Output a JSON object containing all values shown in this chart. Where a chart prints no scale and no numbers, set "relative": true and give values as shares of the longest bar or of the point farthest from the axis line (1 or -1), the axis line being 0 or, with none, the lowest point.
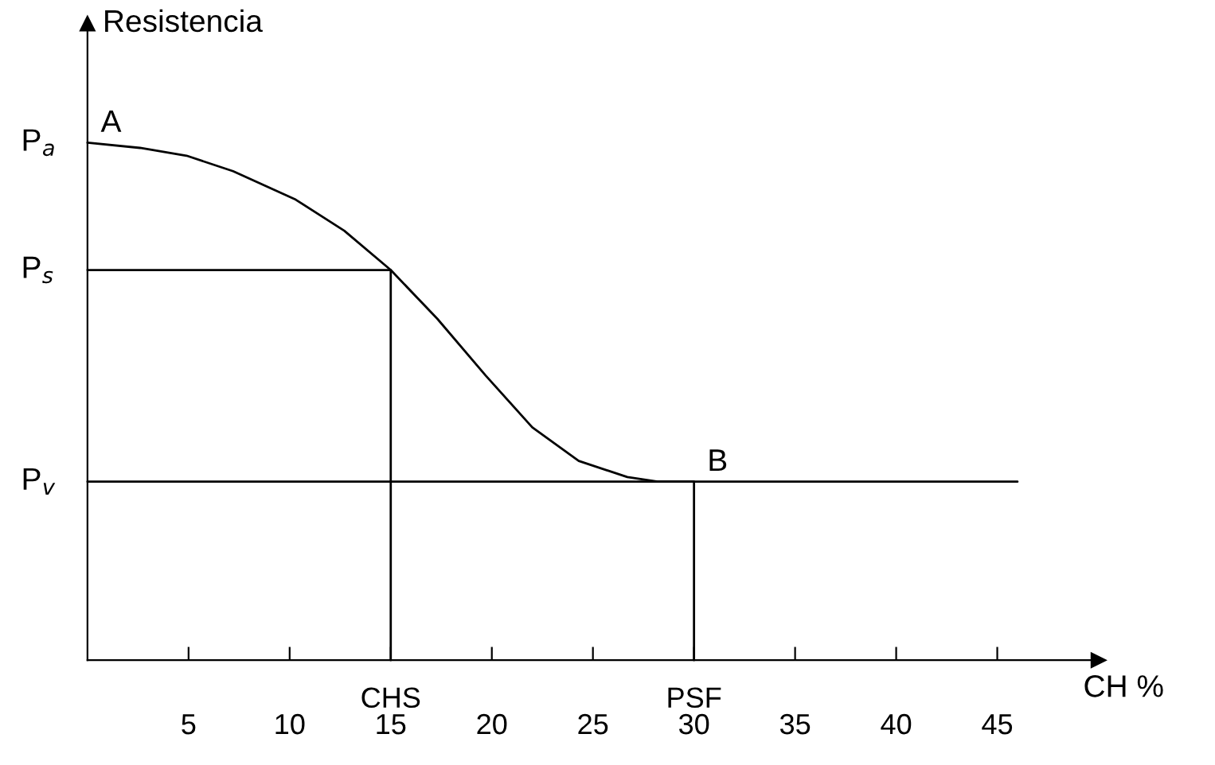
{
  "chart_data": {
    "type": "line",
    "xlabel": "CH %",
    "ylabel": "Resistencia",
    "relative": true,
    "xlim": [
      0,
      50
    ],
    "xticks": [
      5,
      10,
      15,
      20,
      25,
      30,
      35,
      40,
      45
    ],
    "series": [
      {
        "color": "#000000",
        "x": [
          0,
          2.6,
          4.9,
          7.2,
          10.3,
          12.7,
          15,
          17.3,
          19.7,
          22.0,
          24.3,
          26.7,
          28.2,
          30,
          46
        ],
        "values": [
          1.0,
          0.99,
          0.975,
          0.945,
          0.89,
          0.83,
          0.754,
          0.66,
          0.55,
          0.45,
          0.385,
          0.354,
          0.345,
          0.345,
          0.345
        ]
      },
      {
        "color": "#000000",
        "x": [
          0,
          15,
          15
        ],
        "values": [
          0.754,
          0.754,
          0
        ]
      },
      {
        "color": "#000000",
        "x": [
          0,
          30,
          30
        ],
        "values": [
          0.345,
          0.345,
          0
        ]
      }
    ],
    "annotations": [
      {
        "text": "A",
        "x": 0,
        "y": 1.0
      },
      {
        "text": "B",
        "x": 30,
        "y": 0.345
      },
      {
        "text": "P$_{a}$",
        "x": 0,
        "y": 1.0
      },
      {
        "text": "P$_{s}$",
        "x": 0,
        "y": 0.754
      },
      {
        "text": "P$_{v}$",
        "x": 0,
        "y": 0.345
      },
      {
        "text": "CHS",
        "x": 15,
        "y": 0
      },
      {
        "text": "PSF",
        "x": 30,
        "y": 0
      }
    ]
  }
}
